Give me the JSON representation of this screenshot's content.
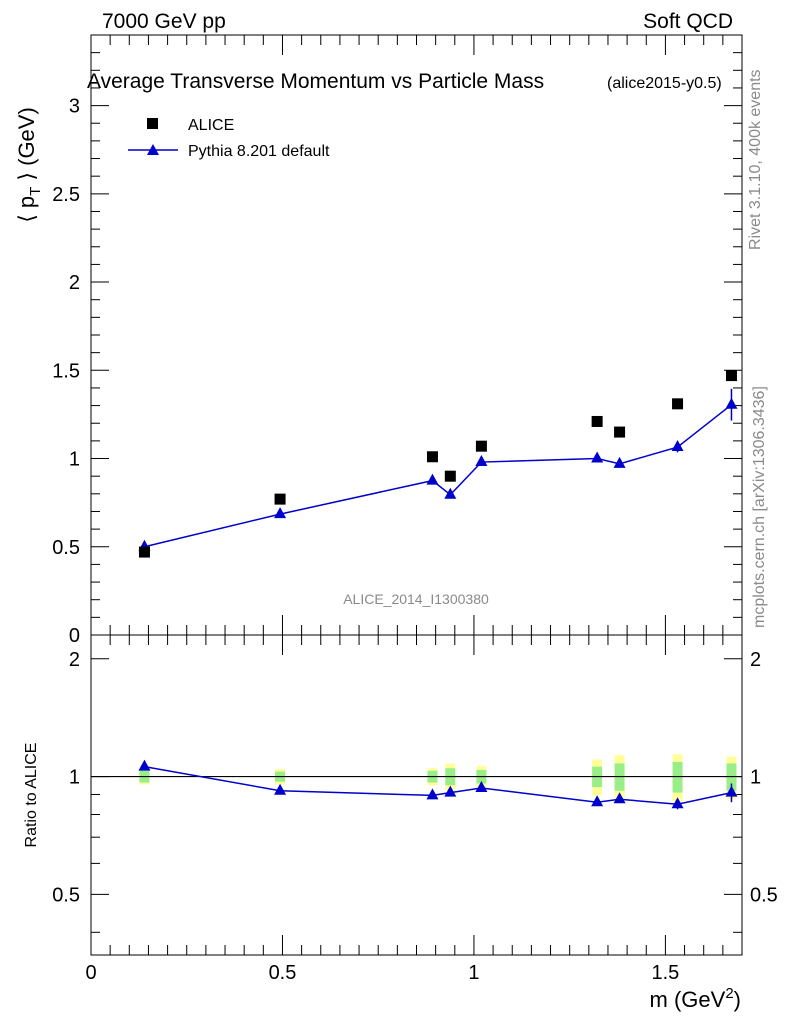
{
  "header": {
    "left": "7000 GeV pp",
    "right": "Soft QCD"
  },
  "chart_data": {
    "type": "line",
    "title": "Average Transverse Momentum vs Particle Mass",
    "subtitle": "(alice2015-y0.5)",
    "analysis_label": "ALICE_2014_I1300380",
    "side_labels": [
      "Rivet 3.1.10,  400k events",
      "mcplots.cern.ch [arXiv:1306.3436]"
    ],
    "xlabel": "m (GeV",
    "xlabel_sup": "2",
    "xlabel_close": ")",
    "ylabel": "⟨ p",
    "ylabel_sub": "T",
    "ylabel_close": " ⟩ (GeV)",
    "ratio_ylabel": "Ratio to ALICE",
    "xlim": [
      0,
      1.7
    ],
    "ylim": [
      0,
      3.4
    ],
    "ratio_ylim": [
      0.35,
      2.3
    ],
    "x_ticks": [
      "0",
      "0.5",
      "1",
      "1.5"
    ],
    "y_ticks": [
      "0",
      "0.5",
      "1",
      "1.5",
      "2",
      "2.5",
      "3"
    ],
    "ratio_y_ticks": [
      "0.5",
      "1",
      "2"
    ],
    "legend_position": "top-left",
    "series": [
      {
        "name": "ALICE",
        "style": "markers",
        "marker": "square",
        "color": "#000000",
        "x": [
          0.1396,
          0.4937,
          0.8917,
          0.9383,
          1.0195,
          1.3217,
          1.3803,
          1.5317,
          1.6725
        ],
        "values": [
          0.47,
          0.77,
          1.01,
          0.9,
          1.07,
          1.21,
          1.15,
          1.31,
          1.47
        ]
      },
      {
        "name": "Pythia 8.201 default",
        "style": "line-markers",
        "marker": "triangle",
        "color": "#0000cc",
        "x": [
          0.1396,
          0.4937,
          0.8917,
          0.9383,
          1.0195,
          1.3217,
          1.3803,
          1.5317,
          1.6725
        ],
        "values": [
          0.5,
          0.685,
          0.875,
          0.795,
          0.98,
          1.0,
          0.97,
          1.065,
          1.305
        ],
        "errors": [
          0.003,
          0.005,
          0.008,
          0.008,
          0.01,
          0.01,
          0.012,
          0.03,
          0.09
        ]
      }
    ],
    "ratio": {
      "x": [
        0.1396,
        0.4937,
        0.8917,
        0.9383,
        1.0195,
        1.3217,
        1.3803,
        1.5317,
        1.6725
      ],
      "values": [
        1.06,
        0.92,
        0.895,
        0.91,
        0.935,
        0.86,
        0.875,
        0.85,
        0.91
      ],
      "errors": [
        0.004,
        0.006,
        0.008,
        0.009,
        0.01,
        0.01,
        0.012,
        0.025,
        0.05
      ],
      "band_inner": [
        0.035,
        0.03,
        0.035,
        0.05,
        0.04,
        0.06,
        0.08,
        0.09,
        0.08
      ],
      "band_outer": [
        0.045,
        0.045,
        0.05,
        0.08,
        0.065,
        0.105,
        0.135,
        0.14,
        0.125
      ]
    },
    "colors": {
      "band_inner": "#99ee88",
      "band_outer": "#ffff99",
      "mc": "#0000cc",
      "data": "#000000"
    }
  }
}
